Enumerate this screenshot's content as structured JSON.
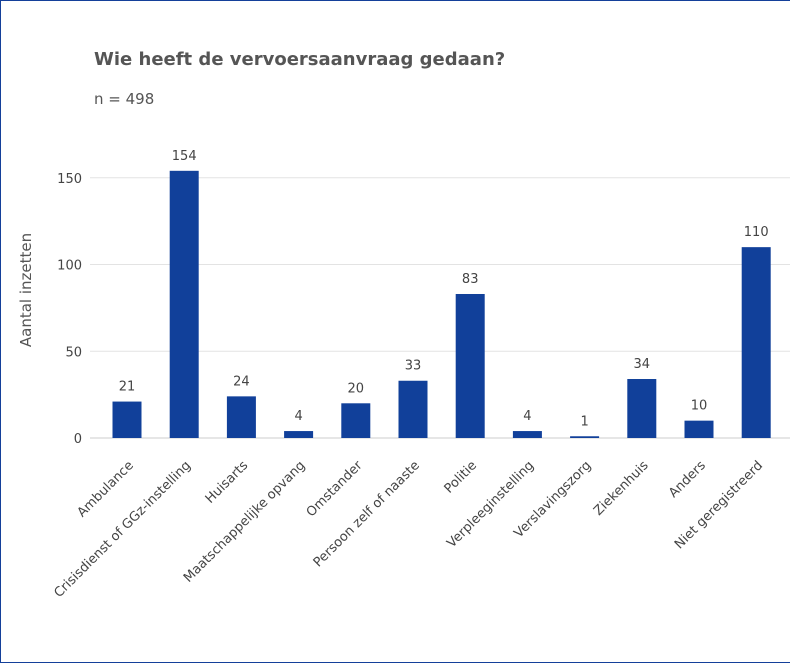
{
  "chart_data": {
    "type": "bar",
    "title": "Wie heeft de vervoersaanvraag gedaan?",
    "subtitle": "n = 498",
    "xlabel": "",
    "ylabel": "Aantal inzetten",
    "ylim": [
      0,
      170
    ],
    "yticks": [
      0,
      50,
      100,
      150
    ],
    "grid": true,
    "bar_color": "#11409a",
    "categories": [
      "Ambulance",
      "Crisisdienst of GGz-instelling",
      "Huisarts",
      "Maatschappelijke opvang",
      "Omstander",
      "Persoon zelf of naaste",
      "Politie",
      "Verpleeginstelling",
      "Verslavingszorg",
      "Ziekenhuis",
      "Anders",
      "Niet geregistreerd"
    ],
    "values": [
      21,
      154,
      24,
      4,
      20,
      33,
      83,
      4,
      1,
      34,
      10,
      110
    ]
  }
}
